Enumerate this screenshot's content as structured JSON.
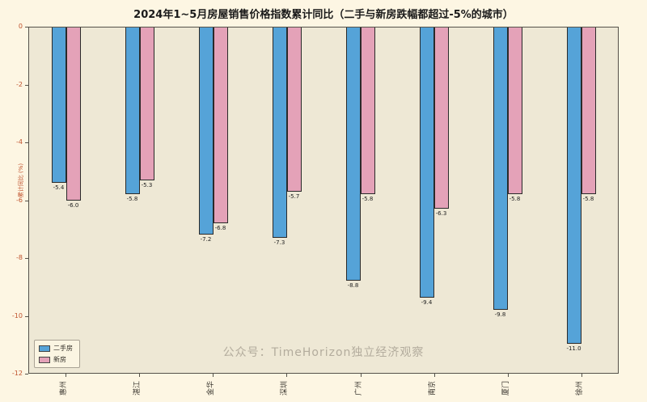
{
  "chart_data": {
    "type": "bar",
    "title": "2024年1~5月房屋销售价格指数累计同比（二手与新房跌幅都超过-5%的城市）",
    "ylabel": "累计同比 (%)",
    "xlabel": "",
    "categories": [
      "惠州",
      "湛江",
      "金华",
      "深圳",
      "广州",
      "南京",
      "厦门",
      "徐州"
    ],
    "series": [
      {
        "name": "二手房",
        "color": "#55a3d8",
        "values": [
          -5.4,
          -5.8,
          -7.2,
          -7.3,
          -8.8,
          -9.4,
          -9.8,
          -11.0
        ]
      },
      {
        "name": "新房",
        "color": "#e4a2b8",
        "values": [
          -6.0,
          -5.3,
          -6.8,
          -5.7,
          -5.8,
          -6.3,
          -5.8,
          -5.8
        ]
      }
    ],
    "ylim": [
      -12,
      0
    ],
    "yticks": [
      0,
      -2,
      -4,
      -6,
      -8,
      -10,
      -12
    ],
    "grid": false,
    "legend_position": "lower left",
    "watermark": "公众号：TimeHorizon独立经济观察",
    "colors": {
      "figure_bg": "#fdf6e3",
      "plot_bg": "#eee8d5",
      "ytick_label": "#c0522d",
      "bar_edge": "#2a2a2a"
    }
  }
}
